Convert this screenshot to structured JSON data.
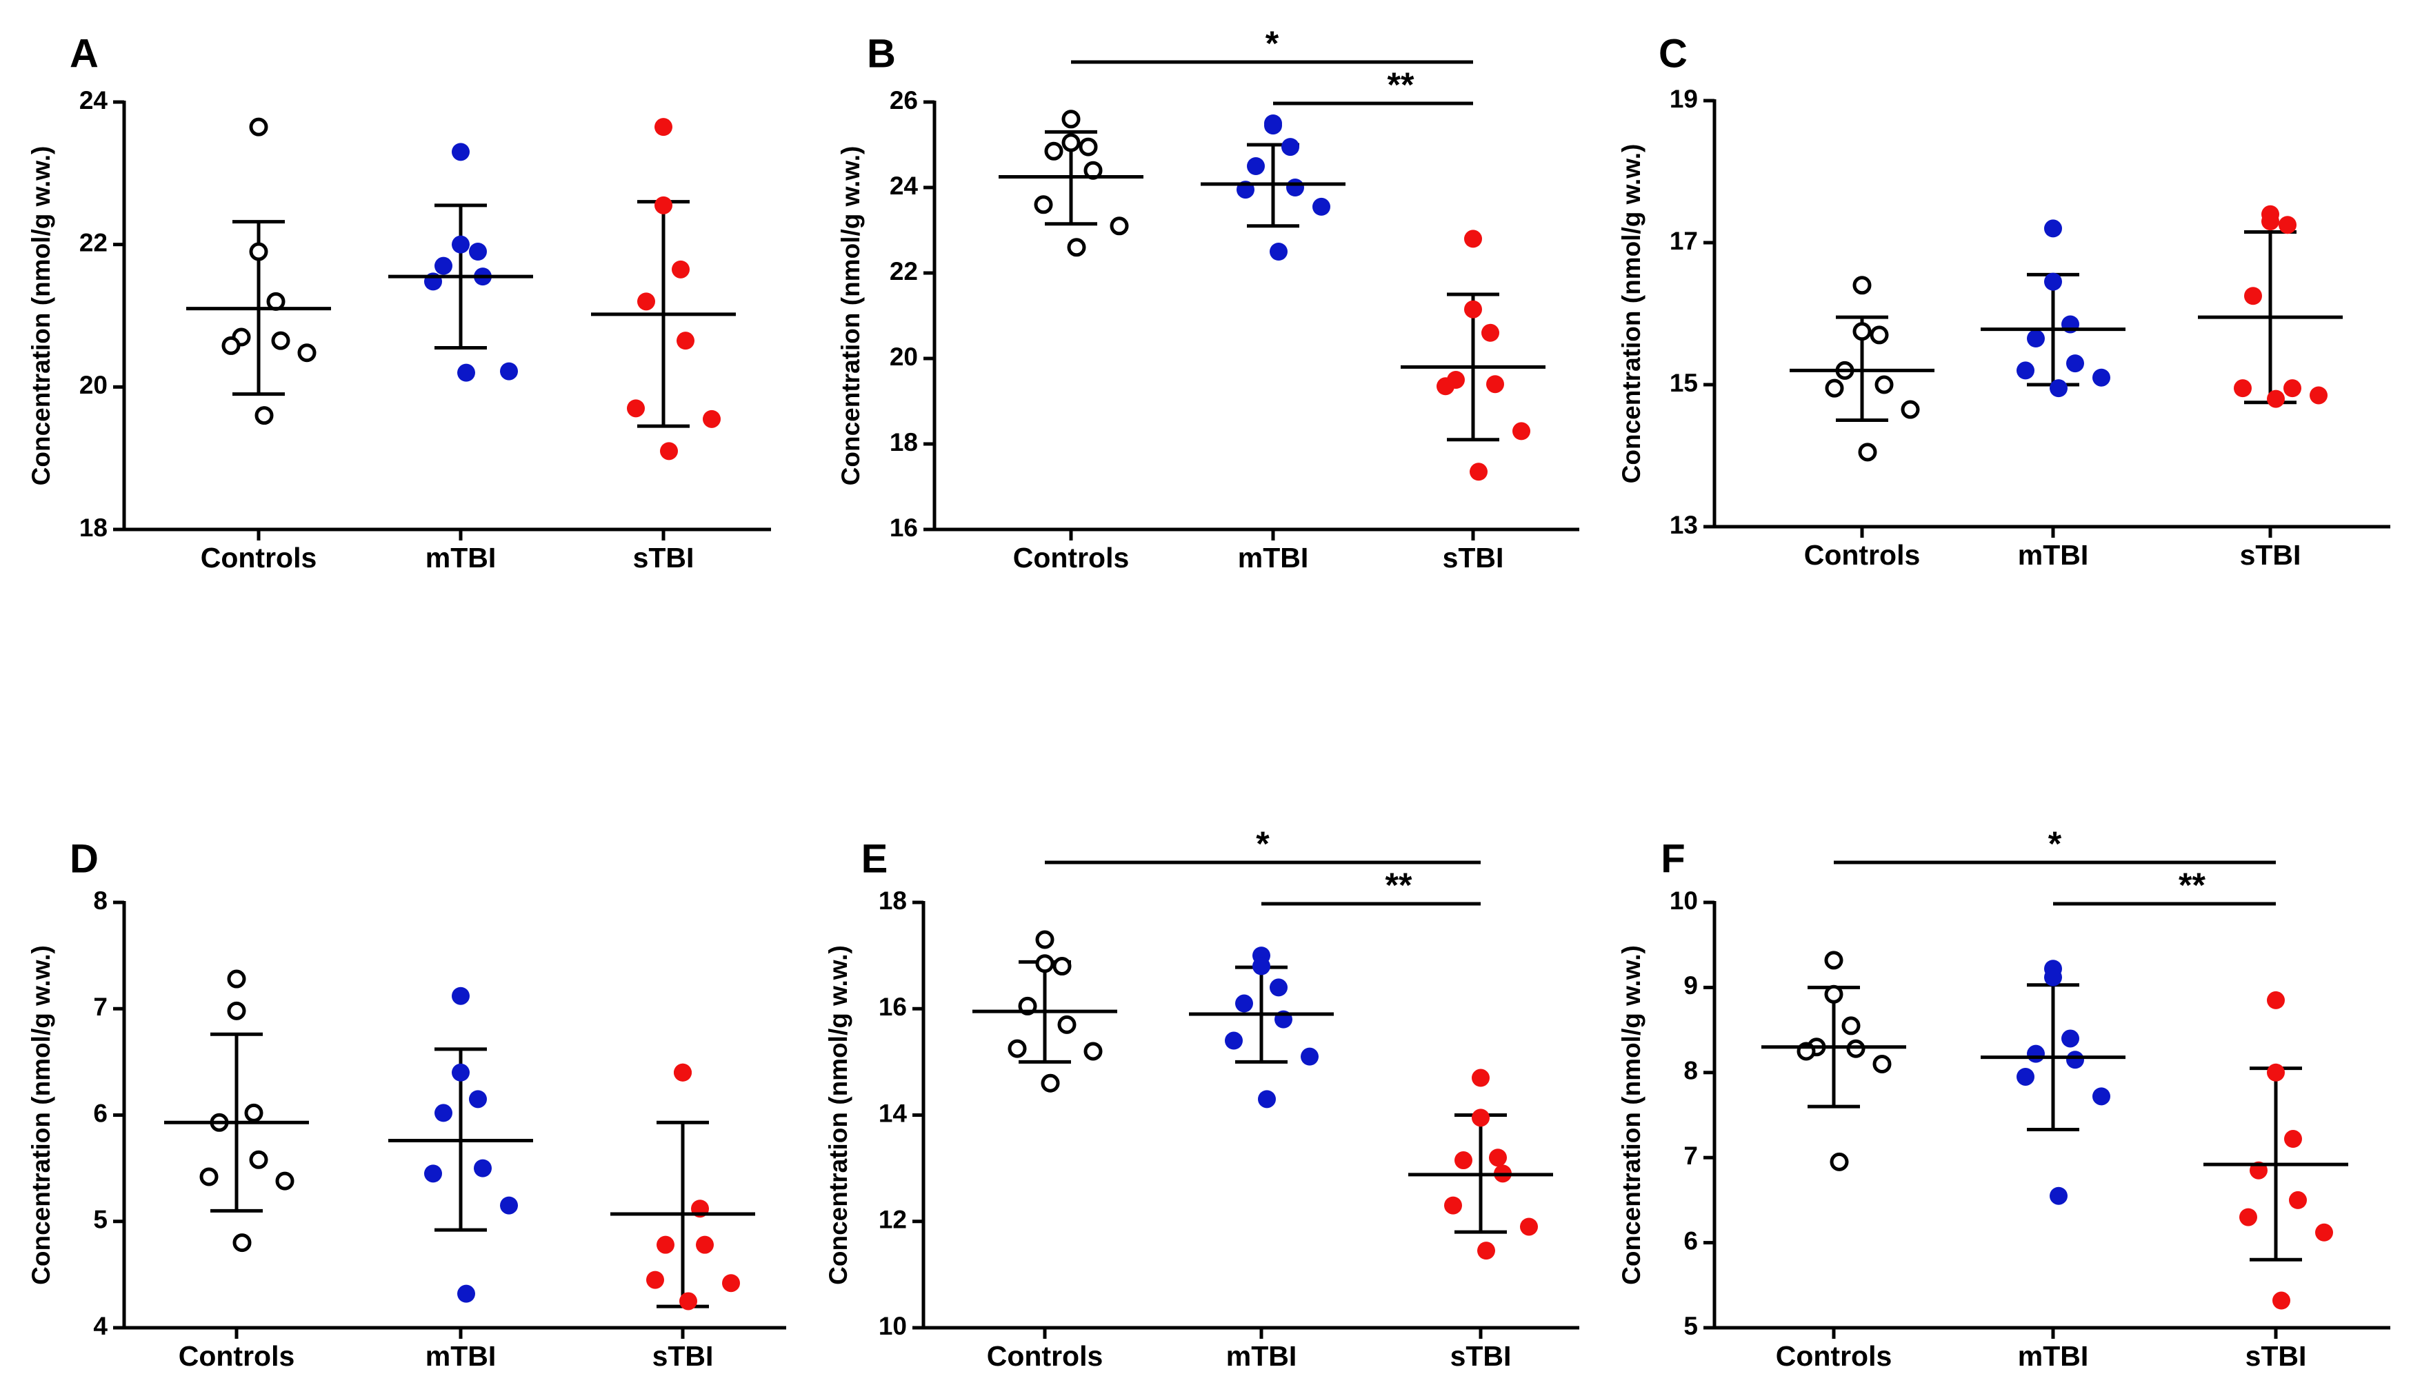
{
  "figure": {
    "colors": {
      "controls": "#ffffff",
      "mTBI": "#0b17c8",
      "sTBI": "#f01010",
      "axis": "#000000"
    }
  },
  "chart_data": [
    {
      "type": "scatter",
      "panel": "A",
      "ylabel": "Concentration (nmol/g w.w.)",
      "ylim": [
        18,
        24
      ],
      "yticks": [
        18,
        20,
        22,
        24
      ],
      "categories": [
        "Controls",
        "mTBI",
        "sTBI"
      ],
      "series": [
        {
          "name": "Controls",
          "fill": "#ffffff",
          "values": [
            23.65,
            21.9,
            21.2,
            20.7,
            20.65,
            20.58,
            20.48,
            19.6
          ],
          "mean": 21.1,
          "sd_low": 19.9,
          "sd_high": 22.32
        },
        {
          "name": "mTBI",
          "fill": "#0b17c8",
          "values": [
            23.3,
            22.0,
            21.9,
            21.7,
            21.55,
            21.48,
            20.22,
            20.2
          ],
          "mean": 21.55,
          "sd_low": 20.55,
          "sd_high": 22.55
        },
        {
          "name": "sTBI",
          "fill": "#f01010",
          "values": [
            23.65,
            22.55,
            21.65,
            21.2,
            20.65,
            19.7,
            19.55,
            19.1
          ],
          "mean": 21.02,
          "sd_low": 19.45,
          "sd_high": 22.6
        }
      ],
      "significance": []
    },
    {
      "type": "scatter",
      "panel": "B",
      "ylabel": "Concentration (nmol/g w.w.)",
      "ylim": [
        16,
        26
      ],
      "yticks": [
        16,
        18,
        20,
        22,
        24,
        26
      ],
      "categories": [
        "Controls",
        "mTBI",
        "sTBI"
      ],
      "series": [
        {
          "name": "Controls",
          "fill": "#ffffff",
          "values": [
            25.6,
            25.05,
            24.95,
            24.85,
            24.4,
            23.6,
            23.1,
            22.6
          ],
          "mean": 24.25,
          "sd_low": 23.15,
          "sd_high": 25.3
        },
        {
          "name": "mTBI",
          "fill": "#0b17c8",
          "values": [
            25.5,
            25.45,
            24.95,
            24.5,
            24.0,
            23.95,
            23.55,
            22.5
          ],
          "mean": 24.08,
          "sd_low": 23.1,
          "sd_high": 25.0
        },
        {
          "name": "sTBI",
          "fill": "#f01010",
          "values": [
            22.8,
            21.15,
            20.6,
            19.5,
            19.4,
            19.35,
            18.3,
            17.35
          ],
          "mean": 19.8,
          "sd_low": 18.1,
          "sd_high": 21.5
        }
      ],
      "significance": [
        {
          "from": "Controls",
          "to": "sTBI",
          "label": "*"
        },
        {
          "from": "mTBI",
          "to": "sTBI",
          "label": "**"
        }
      ]
    },
    {
      "type": "scatter",
      "panel": "C",
      "ylabel": "Concentration (nmol/g w.w.)",
      "ylim": [
        13,
        19
      ],
      "yticks": [
        13,
        15,
        17,
        19
      ],
      "categories": [
        "Controls",
        "mTBI",
        "sTBI"
      ],
      "series": [
        {
          "name": "Controls",
          "fill": "#ffffff",
          "values": [
            16.4,
            15.75,
            15.7,
            15.2,
            15.0,
            14.95,
            14.65,
            14.05
          ],
          "mean": 15.2,
          "sd_low": 14.5,
          "sd_high": 15.95
        },
        {
          "name": "mTBI",
          "fill": "#0b17c8",
          "values": [
            17.2,
            16.45,
            15.85,
            15.65,
            15.3,
            15.2,
            15.1,
            14.95
          ],
          "mean": 15.78,
          "sd_low": 15.0,
          "sd_high": 16.55
        },
        {
          "name": "sTBI",
          "fill": "#f01010",
          "values": [
            17.4,
            17.3,
            17.25,
            16.25,
            14.95,
            14.95,
            14.85,
            14.8
          ],
          "mean": 15.95,
          "sd_low": 14.75,
          "sd_high": 17.15
        }
      ],
      "significance": []
    },
    {
      "type": "scatter",
      "panel": "D",
      "ylabel": "Concentration (nmol/g w.w.)",
      "ylim": [
        4,
        8
      ],
      "yticks": [
        4,
        5,
        6,
        7,
        8
      ],
      "categories": [
        "Controls",
        "mTBI",
        "sTBI"
      ],
      "series": [
        {
          "name": "Controls",
          "fill": "#ffffff",
          "values": [
            7.28,
            6.98,
            6.02,
            5.93,
            5.58,
            5.42,
            5.38,
            4.8
          ],
          "mean": 5.93,
          "sd_low": 5.1,
          "sd_high": 6.76
        },
        {
          "name": "mTBI",
          "fill": "#0b17c8",
          "values": [
            7.12,
            6.4,
            6.15,
            6.02,
            5.5,
            5.45,
            5.15,
            4.32
          ],
          "mean": 5.76,
          "sd_low": 4.92,
          "sd_high": 6.62
        },
        {
          "name": "sTBI",
          "fill": "#f01010",
          "values": [
            6.4,
            6.4,
            5.12,
            4.78,
            4.78,
            4.45,
            4.42,
            4.25
          ],
          "mean": 5.07,
          "sd_low": 4.2,
          "sd_high": 5.93
        }
      ],
      "significance": []
    },
    {
      "type": "scatter",
      "panel": "E",
      "ylabel": "Concentration (nmol/g w.w.)",
      "ylim": [
        10,
        18
      ],
      "yticks": [
        10,
        12,
        14,
        16,
        18
      ],
      "categories": [
        "Controls",
        "mTBI",
        "sTBI"
      ],
      "series": [
        {
          "name": "Controls",
          "fill": "#ffffff",
          "values": [
            17.3,
            16.85,
            16.8,
            16.05,
            15.7,
            15.25,
            15.2,
            14.6
          ],
          "mean": 15.95,
          "sd_low": 15.0,
          "sd_high": 16.88
        },
        {
          "name": "mTBI",
          "fill": "#0b17c8",
          "values": [
            17.0,
            16.8,
            16.4,
            16.1,
            15.8,
            15.4,
            15.1,
            14.3
          ],
          "mean": 15.9,
          "sd_low": 15.0,
          "sd_high": 16.78
        },
        {
          "name": "sTBI",
          "fill": "#f01010",
          "values": [
            14.7,
            13.95,
            13.2,
            13.15,
            12.9,
            12.3,
            11.9,
            11.45
          ],
          "mean": 12.88,
          "sd_low": 11.8,
          "sd_high": 14.0
        }
      ],
      "significance": [
        {
          "from": "Controls",
          "to": "sTBI",
          "label": "*"
        },
        {
          "from": "mTBI",
          "to": "sTBI",
          "label": "**"
        }
      ]
    },
    {
      "type": "scatter",
      "panel": "F",
      "ylabel": "Concentration (nmol/g w.w.)",
      "ylim": [
        5,
        10
      ],
      "yticks": [
        5,
        6,
        7,
        8,
        9,
        10
      ],
      "categories": [
        "Controls",
        "mTBI",
        "sTBI"
      ],
      "series": [
        {
          "name": "Controls",
          "fill": "#ffffff",
          "values": [
            9.32,
            8.92,
            8.55,
            8.3,
            8.28,
            8.25,
            8.1,
            6.95
          ],
          "mean": 8.3,
          "sd_low": 7.6,
          "sd_high": 9.0
        },
        {
          "name": "mTBI",
          "fill": "#0b17c8",
          "values": [
            9.22,
            9.12,
            8.4,
            8.22,
            8.15,
            7.95,
            7.72,
            6.55
          ],
          "mean": 8.18,
          "sd_low": 7.33,
          "sd_high": 9.03
        },
        {
          "name": "sTBI",
          "fill": "#f01010",
          "values": [
            8.85,
            8.0,
            7.22,
            6.85,
            6.5,
            6.3,
            6.12,
            5.32
          ],
          "mean": 6.92,
          "sd_low": 5.8,
          "sd_high": 8.05
        }
      ],
      "significance": [
        {
          "from": "Controls",
          "to": "sTBI",
          "label": "*"
        },
        {
          "from": "mTBI",
          "to": "sTBI",
          "label": "**"
        }
      ]
    }
  ]
}
